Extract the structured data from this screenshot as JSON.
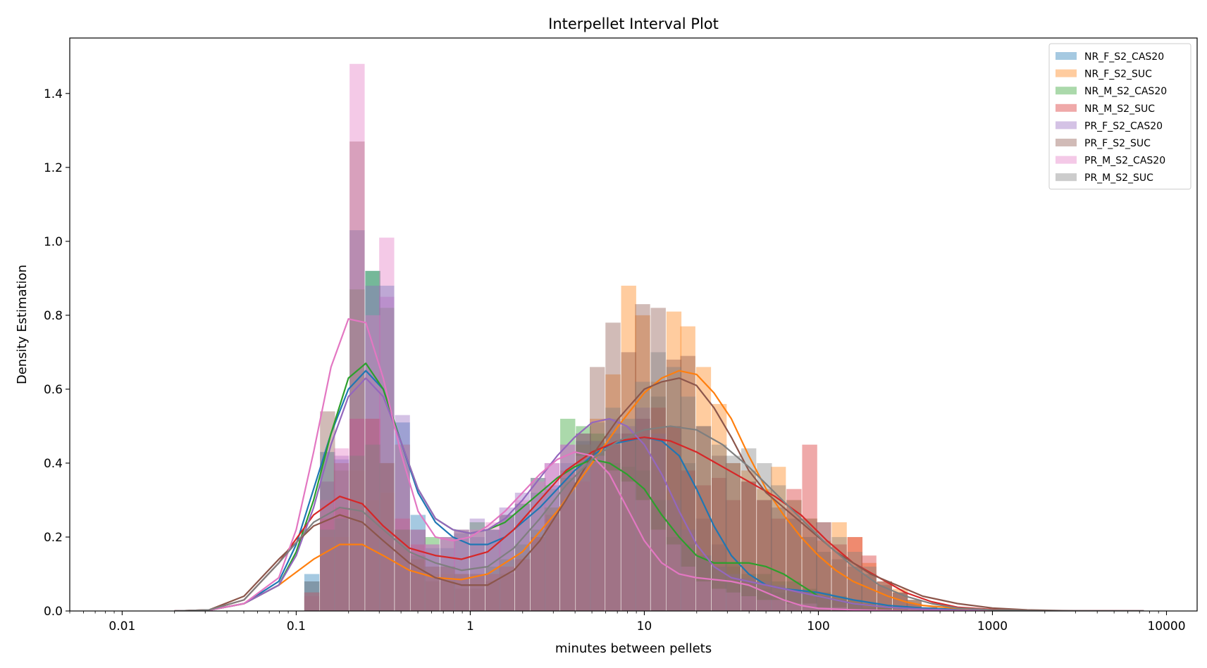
{
  "chart_data": {
    "type": "histogram+kde",
    "title": "Interpellet Interval Plot",
    "xlabel": "minutes between pellets",
    "ylabel": "Density Estimation",
    "x_scale": "log",
    "xlim": [
      0.005,
      15000
    ],
    "ylim": [
      0,
      1.55
    ],
    "x_ticks": [
      0.01,
      0.1,
      1,
      10,
      100,
      1000,
      10000
    ],
    "x_tick_labels": [
      "0.01",
      "0.1",
      "1",
      "10",
      "100",
      "1000",
      "10000"
    ],
    "y_ticks": [
      0.0,
      0.2,
      0.4,
      0.6,
      0.8,
      1.0,
      1.2,
      1.4
    ],
    "y_tick_labels": [
      "0.0",
      "0.2",
      "0.4",
      "0.6",
      "0.8",
      "1.0",
      "1.2",
      "1.4"
    ],
    "legend_position": "top-right",
    "bin_width_log10": 0.0865,
    "bins_centers_log10": [
      -0.91,
      -0.82,
      -0.74,
      -0.65,
      -0.56,
      -0.48,
      -0.39,
      -0.3,
      -0.22,
      -0.13,
      -0.05,
      0.04,
      0.13,
      0.21,
      0.3,
      0.39,
      0.47,
      0.56,
      0.65,
      0.73,
      0.82,
      0.91,
      0.99,
      1.08,
      1.17,
      1.25,
      1.34,
      1.43,
      1.51,
      1.6,
      1.69,
      1.77,
      1.86,
      1.95,
      2.03,
      2.12,
      2.21,
      2.29,
      2.38,
      2.47,
      2.55,
      2.64
    ],
    "series": [
      {
        "name": "NR_F_S2_CAS20",
        "color": "#1f77b4",
        "hist": [
          0.1,
          0.43,
          0.41,
          1.03,
          0.92,
          0.88,
          0.51,
          0.26,
          0.17,
          0.17,
          0.21,
          0.2,
          0.22,
          0.26,
          0.29,
          0.32,
          0.34,
          0.4,
          0.46,
          0.46,
          0.48,
          0.48,
          0.52,
          0.58,
          0.5,
          0.4,
          0.25,
          0.18,
          0.12,
          0.08,
          0.06,
          0.05,
          0.06,
          0.05,
          0.04,
          0.03,
          0.02,
          0.01,
          0.01,
          0.005,
          0.0,
          0.0
        ],
        "kde_x": [
          -1.7,
          -1.5,
          -1.3,
          -1.1,
          -1.0,
          -0.9,
          -0.8,
          -0.7,
          -0.6,
          -0.5,
          -0.4,
          -0.3,
          -0.2,
          -0.1,
          0.0,
          0.1,
          0.2,
          0.3,
          0.4,
          0.5,
          0.6,
          0.7,
          0.8,
          0.9,
          1.0,
          1.1,
          1.2,
          1.3,
          1.4,
          1.5,
          1.6,
          1.7,
          1.8,
          1.9,
          2.0,
          2.2,
          2.4,
          2.6,
          2.8,
          3.0,
          3.2,
          3.4,
          3.6,
          3.87
        ],
        "kde_y": [
          0.0,
          0.002,
          0.02,
          0.08,
          0.18,
          0.33,
          0.48,
          0.6,
          0.65,
          0.6,
          0.46,
          0.32,
          0.24,
          0.2,
          0.18,
          0.18,
          0.2,
          0.24,
          0.28,
          0.33,
          0.38,
          0.42,
          0.45,
          0.46,
          0.47,
          0.46,
          0.42,
          0.33,
          0.23,
          0.15,
          0.1,
          0.07,
          0.06,
          0.055,
          0.05,
          0.03,
          0.015,
          0.008,
          0.004,
          0.002,
          0.001,
          0.0005,
          0.0002,
          0.0
        ]
      },
      {
        "name": "NR_F_S2_SUC",
        "color": "#ff7f0e",
        "hist": [
          0.05,
          0.2,
          0.2,
          0.38,
          0.3,
          0.32,
          0.18,
          0.14,
          0.1,
          0.1,
          0.1,
          0.09,
          0.1,
          0.12,
          0.15,
          0.2,
          0.28,
          0.35,
          0.45,
          0.52,
          0.64,
          0.88,
          0.8,
          0.62,
          0.81,
          0.77,
          0.66,
          0.56,
          0.4,
          0.38,
          0.33,
          0.39,
          0.3,
          0.25,
          0.19,
          0.24,
          0.2,
          0.13,
          0.08,
          0.06,
          0.03,
          0.01
        ],
        "kde_x": [
          -1.7,
          -1.5,
          -1.3,
          -1.1,
          -0.9,
          -0.75,
          -0.62,
          -0.5,
          -0.35,
          -0.2,
          -0.05,
          0.1,
          0.3,
          0.5,
          0.7,
          0.85,
          1.0,
          1.1,
          1.2,
          1.3,
          1.4,
          1.5,
          1.6,
          1.7,
          1.8,
          1.9,
          2.0,
          2.1,
          2.2,
          2.3,
          2.4,
          2.5,
          2.6,
          2.8,
          3.0,
          3.2,
          3.4,
          3.6,
          3.87
        ],
        "kde_y": [
          0.0,
          0.002,
          0.02,
          0.07,
          0.14,
          0.18,
          0.18,
          0.15,
          0.11,
          0.09,
          0.085,
          0.1,
          0.16,
          0.27,
          0.4,
          0.5,
          0.59,
          0.63,
          0.65,
          0.64,
          0.59,
          0.52,
          0.42,
          0.33,
          0.26,
          0.2,
          0.15,
          0.11,
          0.08,
          0.06,
          0.04,
          0.025,
          0.015,
          0.007,
          0.003,
          0.001,
          0.0005,
          0.0002,
          0.0
        ]
      },
      {
        "name": "NR_M_S2_CAS20",
        "color": "#2ca02c",
        "hist": [
          0.08,
          0.3,
          0.38,
          0.87,
          0.92,
          0.82,
          0.45,
          0.22,
          0.2,
          0.2,
          0.22,
          0.24,
          0.22,
          0.26,
          0.29,
          0.36,
          0.33,
          0.52,
          0.5,
          0.48,
          0.4,
          0.39,
          0.38,
          0.3,
          0.2,
          0.18,
          0.15,
          0.12,
          0.13,
          0.1,
          0.1,
          0.08,
          0.08,
          0.06,
          0.05,
          0.04,
          0.03,
          0.02,
          0.01,
          0.005,
          0.0,
          0.0
        ],
        "kde_x": [
          -1.7,
          -1.5,
          -1.3,
          -1.1,
          -1.0,
          -0.9,
          -0.8,
          -0.7,
          -0.6,
          -0.5,
          -0.4,
          -0.3,
          -0.2,
          -0.1,
          0.0,
          0.1,
          0.2,
          0.3,
          0.4,
          0.5,
          0.6,
          0.7,
          0.8,
          0.9,
          1.0,
          1.1,
          1.2,
          1.3,
          1.4,
          1.5,
          1.6,
          1.7,
          1.8,
          1.9,
          2.0,
          2.2,
          2.4,
          2.6,
          2.8,
          3.0,
          3.2,
          3.4,
          3.6,
          3.87
        ],
        "kde_y": [
          0.0,
          0.002,
          0.02,
          0.07,
          0.16,
          0.3,
          0.48,
          0.63,
          0.67,
          0.6,
          0.46,
          0.33,
          0.25,
          0.22,
          0.21,
          0.22,
          0.24,
          0.28,
          0.32,
          0.36,
          0.39,
          0.41,
          0.4,
          0.37,
          0.33,
          0.26,
          0.2,
          0.15,
          0.13,
          0.13,
          0.13,
          0.12,
          0.1,
          0.07,
          0.04,
          0.02,
          0.01,
          0.005,
          0.002,
          0.001,
          0.0005,
          0.0002,
          0.0001,
          0.0
        ]
      },
      {
        "name": "NR_M_S2_SUC",
        "color": "#d62728",
        "hist": [
          0.04,
          0.25,
          0.28,
          0.52,
          0.52,
          0.4,
          0.25,
          0.18,
          0.12,
          0.12,
          0.1,
          0.1,
          0.1,
          0.12,
          0.14,
          0.2,
          0.25,
          0.3,
          0.35,
          0.4,
          0.45,
          0.48,
          0.52,
          0.55,
          0.5,
          0.38,
          0.34,
          0.36,
          0.3,
          0.35,
          0.3,
          0.25,
          0.33,
          0.45,
          0.24,
          0.18,
          0.2,
          0.15,
          0.08,
          0.05,
          0.02,
          0.01
        ],
        "kde_x": [
          -1.7,
          -1.5,
          -1.3,
          -1.1,
          -0.9,
          -0.75,
          -0.62,
          -0.5,
          -0.35,
          -0.2,
          -0.05,
          0.1,
          0.25,
          0.4,
          0.55,
          0.7,
          0.85,
          1.0,
          1.15,
          1.3,
          1.45,
          1.6,
          1.75,
          1.9,
          2.05,
          2.2,
          2.35,
          2.5,
          2.65,
          2.8,
          3.0,
          3.2,
          3.4,
          3.6,
          3.87
        ],
        "kde_y": [
          0.0,
          0.003,
          0.03,
          0.13,
          0.26,
          0.31,
          0.29,
          0.23,
          0.17,
          0.15,
          0.14,
          0.16,
          0.22,
          0.3,
          0.38,
          0.43,
          0.46,
          0.47,
          0.46,
          0.43,
          0.39,
          0.35,
          0.31,
          0.26,
          0.19,
          0.13,
          0.09,
          0.05,
          0.025,
          0.01,
          0.004,
          0.0015,
          0.0005,
          0.0002,
          0.0
        ]
      },
      {
        "name": "PR_F_S2_CAS20",
        "color": "#9467bd",
        "hist": [
          0.08,
          0.35,
          0.42,
          0.52,
          0.88,
          0.85,
          0.53,
          0.22,
          0.18,
          0.2,
          0.22,
          0.25,
          0.22,
          0.28,
          0.32,
          0.36,
          0.4,
          0.45,
          0.48,
          0.46,
          0.52,
          0.5,
          0.55,
          0.48,
          0.3,
          0.22,
          0.15,
          0.12,
          0.1,
          0.09,
          0.08,
          0.07,
          0.06,
          0.05,
          0.04,
          0.03,
          0.02,
          0.01,
          0.005,
          0.0,
          0.0,
          0.0
        ],
        "kde_x": [
          -1.7,
          -1.5,
          -1.3,
          -1.1,
          -1.0,
          -0.9,
          -0.8,
          -0.7,
          -0.6,
          -0.5,
          -0.4,
          -0.3,
          -0.2,
          -0.1,
          0.0,
          0.1,
          0.2,
          0.3,
          0.4,
          0.5,
          0.6,
          0.7,
          0.8,
          0.9,
          1.0,
          1.1,
          1.2,
          1.3,
          1.4,
          1.5,
          1.6,
          1.7,
          1.8,
          1.9,
          2.0,
          2.2,
          2.4,
          2.6,
          2.8,
          3.0,
          3.2,
          3.4,
          3.6,
          3.87
        ],
        "kde_y": [
          0.0,
          0.002,
          0.02,
          0.07,
          0.15,
          0.28,
          0.45,
          0.58,
          0.63,
          0.58,
          0.46,
          0.33,
          0.25,
          0.22,
          0.21,
          0.22,
          0.25,
          0.3,
          0.36,
          0.42,
          0.47,
          0.51,
          0.52,
          0.5,
          0.45,
          0.37,
          0.27,
          0.18,
          0.12,
          0.09,
          0.08,
          0.07,
          0.06,
          0.05,
          0.04,
          0.02,
          0.01,
          0.005,
          0.002,
          0.001,
          0.0005,
          0.0002,
          0.0001,
          0.0
        ]
      },
      {
        "name": "PR_F_S2_SUC",
        "color": "#8c564b",
        "hist": [
          0.05,
          0.54,
          0.4,
          1.27,
          0.52,
          0.4,
          0.22,
          0.14,
          0.08,
          0.08,
          0.06,
          0.06,
          0.08,
          0.1,
          0.14,
          0.2,
          0.26,
          0.38,
          0.48,
          0.66,
          0.78,
          0.7,
          0.83,
          0.82,
          0.68,
          0.69,
          0.5,
          0.42,
          0.4,
          0.35,
          0.3,
          0.28,
          0.25,
          0.2,
          0.16,
          0.14,
          0.12,
          0.1,
          0.07,
          0.05,
          0.03,
          0.01
        ],
        "kde_x": [
          -1.7,
          -1.5,
          -1.3,
          -1.1,
          -0.9,
          -0.75,
          -0.62,
          -0.5,
          -0.35,
          -0.2,
          -0.05,
          0.1,
          0.25,
          0.4,
          0.55,
          0.7,
          0.85,
          1.0,
          1.1,
          1.2,
          1.3,
          1.4,
          1.5,
          1.6,
          1.7,
          1.8,
          1.9,
          2.0,
          2.1,
          2.2,
          2.3,
          2.4,
          2.5,
          2.6,
          2.8,
          3.0,
          3.2,
          3.4,
          3.6,
          3.87
        ],
        "kde_y": [
          0.0,
          0.003,
          0.04,
          0.14,
          0.23,
          0.26,
          0.24,
          0.19,
          0.13,
          0.09,
          0.07,
          0.07,
          0.11,
          0.19,
          0.3,
          0.42,
          0.52,
          0.6,
          0.62,
          0.63,
          0.61,
          0.55,
          0.47,
          0.38,
          0.32,
          0.28,
          0.24,
          0.2,
          0.16,
          0.13,
          0.1,
          0.08,
          0.06,
          0.04,
          0.02,
          0.008,
          0.003,
          0.001,
          0.0004,
          0.0
        ]
      },
      {
        "name": "PR_M_S2_CAS20",
        "color": "#e377c2",
        "hist": [
          0.05,
          0.3,
          0.44,
          1.48,
          0.8,
          1.01,
          0.45,
          0.22,
          0.18,
          0.2,
          0.22,
          0.22,
          0.24,
          0.26,
          0.3,
          0.35,
          0.4,
          0.45,
          0.42,
          0.42,
          0.38,
          0.35,
          0.3,
          0.22,
          0.18,
          0.12,
          0.08,
          0.06,
          0.05,
          0.04,
          0.03,
          0.03,
          0.02,
          0.02,
          0.01,
          0.01,
          0.005,
          0.0,
          0.0,
          0.0,
          0.0,
          0.0
        ],
        "kde_x": [
          -1.7,
          -1.5,
          -1.3,
          -1.1,
          -1.0,
          -0.9,
          -0.8,
          -0.7,
          -0.6,
          -0.5,
          -0.4,
          -0.3,
          -0.2,
          -0.1,
          0.0,
          0.1,
          0.2,
          0.3,
          0.4,
          0.5,
          0.6,
          0.7,
          0.8,
          0.9,
          1.0,
          1.1,
          1.2,
          1.3,
          1.4,
          1.5,
          1.6,
          1.7,
          1.8,
          1.9,
          2.0,
          2.2,
          2.4,
          2.6,
          2.8,
          3.0,
          3.2,
          3.4,
          3.6,
          3.87
        ],
        "kde_y": [
          0.0,
          0.002,
          0.02,
          0.09,
          0.22,
          0.43,
          0.66,
          0.79,
          0.78,
          0.63,
          0.43,
          0.27,
          0.2,
          0.19,
          0.2,
          0.23,
          0.27,
          0.32,
          0.37,
          0.41,
          0.43,
          0.42,
          0.37,
          0.28,
          0.19,
          0.13,
          0.1,
          0.09,
          0.085,
          0.08,
          0.07,
          0.05,
          0.03,
          0.015,
          0.007,
          0.003,
          0.001,
          0.0005,
          0.0002,
          0.0001,
          0.0,
          0.0,
          0.0,
          0.0
        ]
      },
      {
        "name": "PR_M_S2_SUC",
        "color": "#7f7f7f",
        "hist": [
          0.05,
          0.22,
          0.25,
          0.42,
          0.45,
          0.4,
          0.22,
          0.15,
          0.12,
          0.12,
          0.1,
          0.1,
          0.12,
          0.14,
          0.18,
          0.22,
          0.28,
          0.36,
          0.45,
          0.51,
          0.55,
          0.52,
          0.62,
          0.7,
          0.66,
          0.58,
          0.5,
          0.45,
          0.42,
          0.44,
          0.4,
          0.34,
          0.3,
          0.25,
          0.24,
          0.2,
          0.16,
          0.12,
          0.08,
          0.05,
          0.03,
          0.01
        ],
        "kde_x": [
          -1.7,
          -1.5,
          -1.3,
          -1.1,
          -0.9,
          -0.75,
          -0.62,
          -0.5,
          -0.35,
          -0.2,
          -0.05,
          0.1,
          0.25,
          0.4,
          0.55,
          0.7,
          0.85,
          1.0,
          1.15,
          1.3,
          1.45,
          1.6,
          1.75,
          1.9,
          2.05,
          2.2,
          2.35,
          2.5,
          2.65,
          2.8,
          3.0,
          3.2,
          3.4,
          3.6,
          3.87
        ],
        "kde_y": [
          0.0,
          0.003,
          0.03,
          0.13,
          0.24,
          0.28,
          0.27,
          0.22,
          0.16,
          0.13,
          0.11,
          0.12,
          0.17,
          0.25,
          0.34,
          0.41,
          0.46,
          0.49,
          0.5,
          0.49,
          0.45,
          0.39,
          0.32,
          0.25,
          0.18,
          0.12,
          0.07,
          0.04,
          0.02,
          0.008,
          0.003,
          0.001,
          0.0004,
          0.0001,
          0.0
        ]
      }
    ]
  }
}
